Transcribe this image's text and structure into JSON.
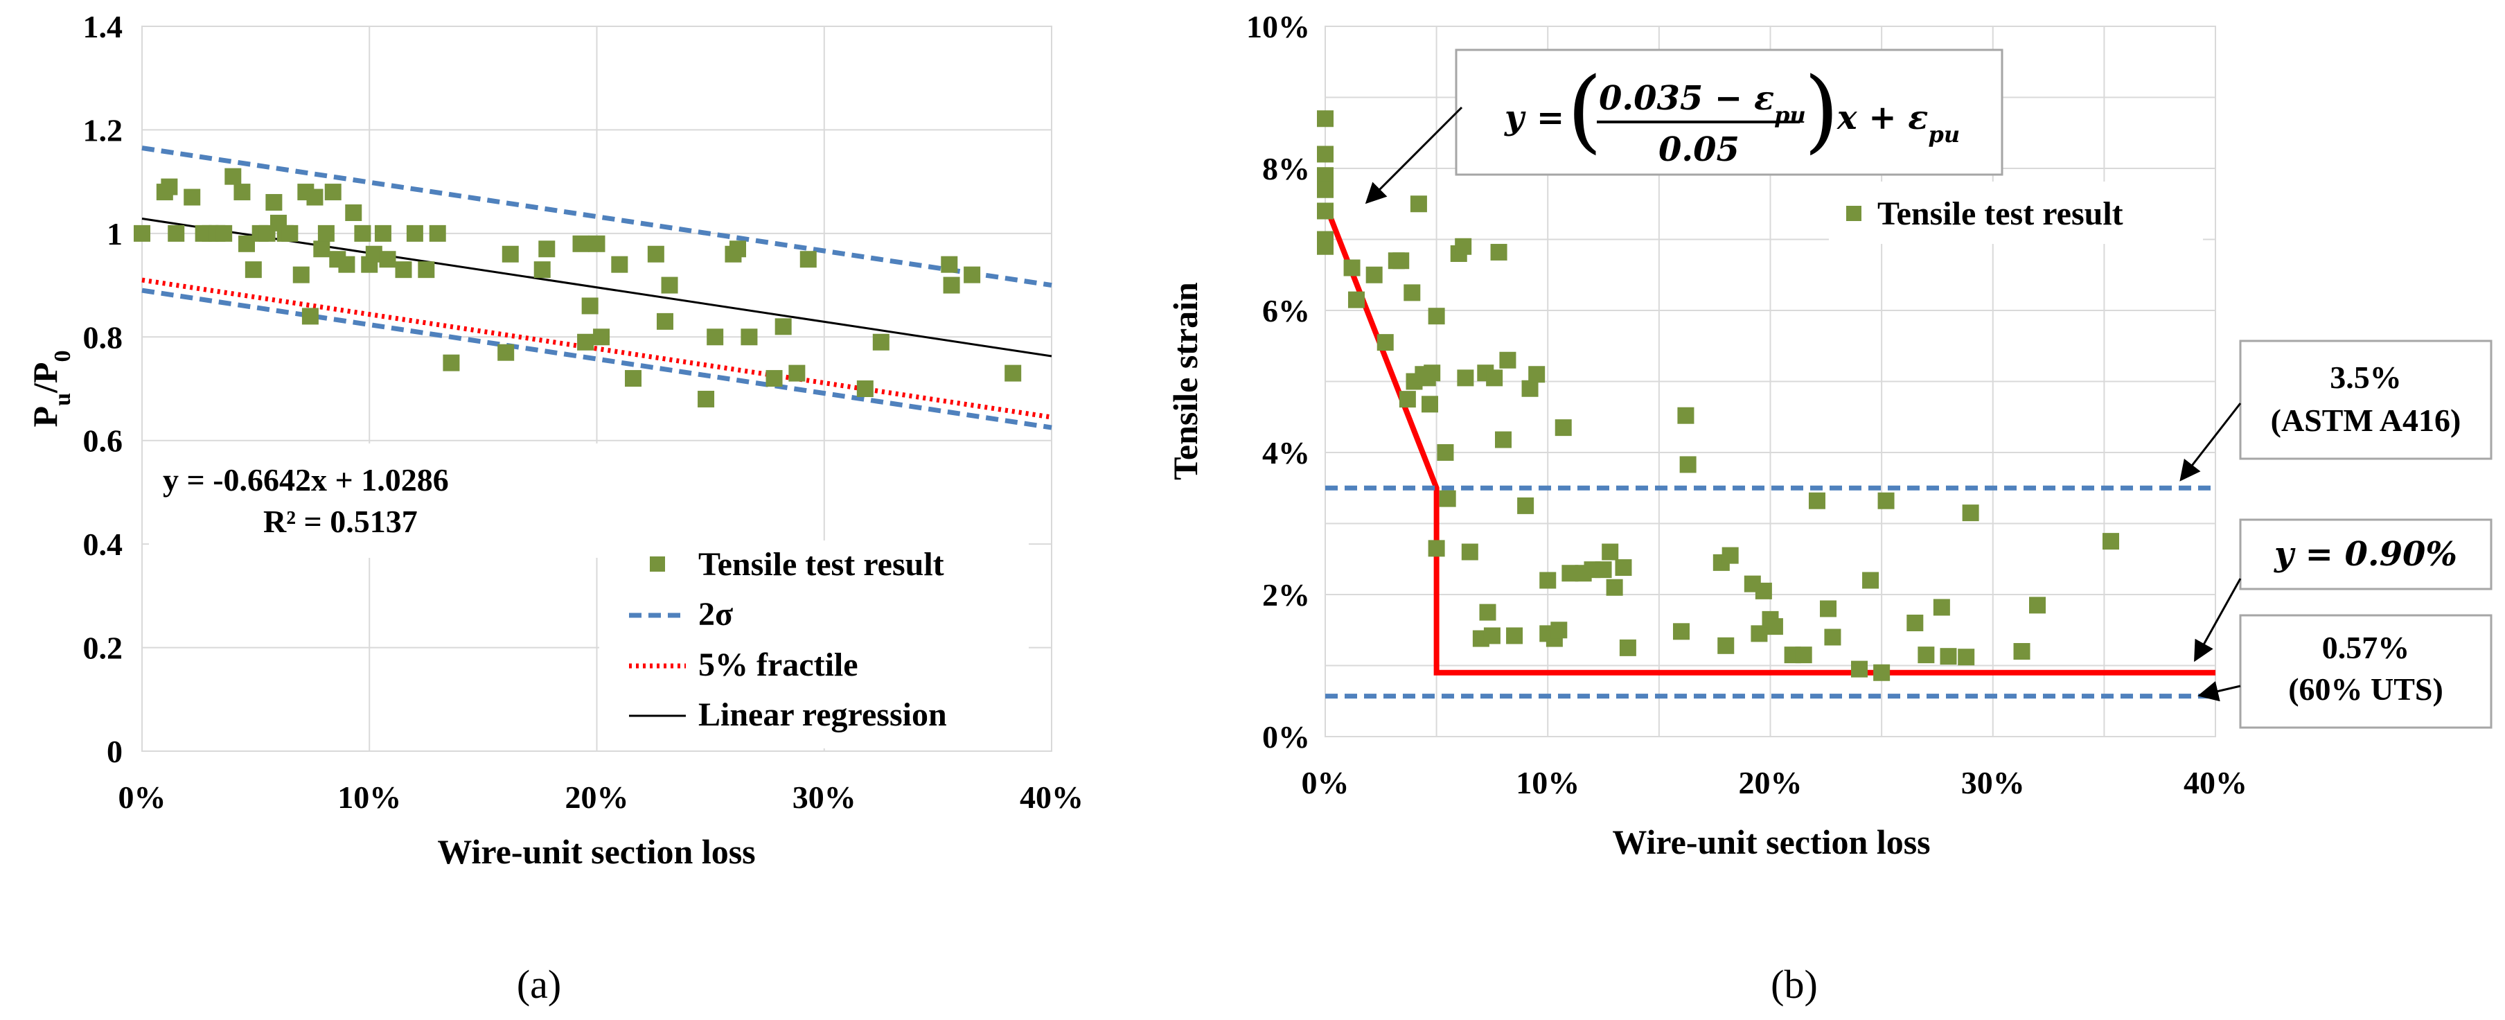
{
  "chart_data": [
    {
      "panel_label": "(a)",
      "type": "scatter",
      "xlabel": "Wire-unit section loss",
      "ylabel_main": "P",
      "ylabel_sub1": "u",
      "ylabel_mid": "/P",
      "ylabel_sub2": "0",
      "xlim": [
        0,
        0.4
      ],
      "ylim": [
        0,
        1.4
      ],
      "x_ticks": [
        "0%",
        "10%",
        "20%",
        "30%",
        "40%"
      ],
      "y_ticks": [
        "0",
        "0.2",
        "0.4",
        "0.6",
        "0.8",
        "1",
        "1.2",
        "1.4"
      ],
      "equation": "y = -0.6642x + 1.0286",
      "r_squared": "R² = 0.5137",
      "legend": [
        "Tensile test result",
        "2σ",
        "5% fractile",
        "Linear regression"
      ],
      "colors": {
        "points": "#77933C",
        "two_sigma": "#4F81BD",
        "fractile": "#FF0000",
        "regression": "#000000"
      },
      "series": [
        {
          "name": "Tensile test result",
          "points": [
            [
              0.0,
              1.0
            ],
            [
              0.01,
              1.08
            ],
            [
              0.012,
              1.09
            ],
            [
              0.015,
              1.0
            ],
            [
              0.022,
              1.07
            ],
            [
              0.027,
              1.0
            ],
            [
              0.03,
              1.0
            ],
            [
              0.033,
              1.0
            ],
            [
              0.036,
              1.0
            ],
            [
              0.04,
              1.11
            ],
            [
              0.044,
              1.08
            ],
            [
              0.046,
              0.98
            ],
            [
              0.049,
              0.93
            ],
            [
              0.052,
              1.0
            ],
            [
              0.055,
              1.0
            ],
            [
              0.058,
              1.06
            ],
            [
              0.06,
              1.02
            ],
            [
              0.063,
              1.0
            ],
            [
              0.065,
              1.0
            ],
            [
              0.07,
              0.92
            ],
            [
              0.072,
              1.08
            ],
            [
              0.074,
              0.84
            ],
            [
              0.076,
              1.07
            ],
            [
              0.079,
              0.97
            ],
            [
              0.081,
              1.0
            ],
            [
              0.084,
              1.08
            ],
            [
              0.086,
              0.95
            ],
            [
              0.09,
              0.94
            ],
            [
              0.093,
              1.04
            ],
            [
              0.097,
              1.0
            ],
            [
              0.1,
              0.94
            ],
            [
              0.102,
              0.96
            ],
            [
              0.106,
              1.0
            ],
            [
              0.108,
              0.95
            ],
            [
              0.115,
              0.93
            ],
            [
              0.12,
              1.0
            ],
            [
              0.125,
              0.93
            ],
            [
              0.13,
              1.0
            ],
            [
              0.136,
              0.75
            ],
            [
              0.16,
              0.77
            ],
            [
              0.162,
              0.96
            ],
            [
              0.176,
              0.93
            ],
            [
              0.178,
              0.97
            ],
            [
              0.193,
              0.98
            ],
            [
              0.195,
              0.79
            ],
            [
              0.197,
              0.86
            ],
            [
              0.2,
              0.98
            ],
            [
              0.202,
              0.8
            ],
            [
              0.21,
              0.94
            ],
            [
              0.216,
              0.72
            ],
            [
              0.226,
              0.96
            ],
            [
              0.23,
              0.83
            ],
            [
              0.232,
              0.9
            ],
            [
              0.248,
              0.68
            ],
            [
              0.252,
              0.8
            ],
            [
              0.26,
              0.96
            ],
            [
              0.262,
              0.97
            ],
            [
              0.267,
              0.8
            ],
            [
              0.278,
              0.72
            ],
            [
              0.282,
              0.82
            ],
            [
              0.288,
              0.73
            ],
            [
              0.293,
              0.95
            ],
            [
              0.318,
              0.7
            ],
            [
              0.325,
              0.79
            ],
            [
              0.355,
              0.94
            ],
            [
              0.356,
              0.9
            ],
            [
              0.365,
              0.92
            ],
            [
              0.383,
              0.73
            ]
          ]
        },
        {
          "name": "2σ upper",
          "line": [
            [
              0,
              1.165
            ],
            [
              0.4,
              0.9
            ]
          ]
        },
        {
          "name": "2σ lower",
          "line": [
            [
              0,
              0.89
            ],
            [
              0.4,
              0.625
            ]
          ]
        },
        {
          "name": "5% fractile",
          "line": [
            [
              0,
              0.91
            ],
            [
              0.4,
              0.645
            ]
          ]
        },
        {
          "name": "Linear regression",
          "line": [
            [
              0,
              1.0286
            ],
            [
              0.4,
              0.7629
            ]
          ]
        }
      ]
    },
    {
      "panel_label": "(b)",
      "type": "scatter",
      "xlabel": "Wire-unit section loss",
      "ylabel": "Tensile strain",
      "xlim": [
        0,
        0.4
      ],
      "ylim": [
        0,
        0.1
      ],
      "x_ticks": [
        "0%",
        "10%",
        "20%",
        "30%",
        "40%"
      ],
      "y_ticks": [
        "0%",
        "2%",
        "4%",
        "6%",
        "8%",
        "10%"
      ],
      "legend": [
        "Tensile test result"
      ],
      "eq_y": "y",
      "eq_equals": "=",
      "eq_num": "0.035 − ε",
      "eq_num_sub": "pu",
      "eq_den": "0.05",
      "eq_tail": "x + ε",
      "eq_tail_sub": "pu",
      "note_astm_value": "3.5%",
      "note_astm_label": "(ASTM A416)",
      "note_090": "y = 0.90%",
      "note_057_value": "0.57%",
      "note_057_label": "(60% UTS)",
      "colors": {
        "points": "#77933C",
        "limits": "#4F81BD",
        "model": "#FF0000"
      },
      "series": [
        {
          "name": "Tensile test result",
          "points": [
            [
              0.0,
              0.087
            ],
            [
              0.0,
              0.082
            ],
            [
              0.0,
              0.079
            ],
            [
              0.0,
              0.077
            ],
            [
              0.0,
              0.074
            ],
            [
              0.0,
              0.07
            ],
            [
              0.0,
              0.069
            ],
            [
              0.012,
              0.066
            ],
            [
              0.014,
              0.0615
            ],
            [
              0.022,
              0.065
            ],
            [
              0.027,
              0.0555
            ],
            [
              0.032,
              0.067
            ],
            [
              0.034,
              0.067
            ],
            [
              0.037,
              0.0475
            ],
            [
              0.039,
              0.0625
            ],
            [
              0.04,
              0.05
            ],
            [
              0.042,
              0.075
            ],
            [
              0.044,
              0.051
            ],
            [
              0.046,
              0.0505
            ],
            [
              0.047,
              0.0468
            ],
            [
              0.048,
              0.0512
            ],
            [
              0.05,
              0.0592
            ],
            [
              0.05,
              0.0265
            ],
            [
              0.054,
              0.04
            ],
            [
              0.055,
              0.0335
            ],
            [
              0.06,
              0.068
            ],
            [
              0.062,
              0.069
            ],
            [
              0.063,
              0.0505
            ],
            [
              0.065,
              0.026
            ],
            [
              0.07,
              0.0138
            ],
            [
              0.072,
              0.0512
            ],
            [
              0.073,
              0.0175
            ],
            [
              0.075,
              0.0142
            ],
            [
              0.076,
              0.0505
            ],
            [
              0.078,
              0.0682
            ],
            [
              0.08,
              0.0418
            ],
            [
              0.082,
              0.053
            ],
            [
              0.085,
              0.0142
            ],
            [
              0.09,
              0.0325
            ],
            [
              0.092,
              0.049
            ],
            [
              0.095,
              0.051
            ],
            [
              0.1,
              0.0145
            ],
            [
              0.1,
              0.022
            ],
            [
              0.103,
              0.0138
            ],
            [
              0.105,
              0.015
            ],
            [
              0.107,
              0.0435
            ],
            [
              0.11,
              0.023
            ],
            [
              0.116,
              0.023
            ],
            [
              0.12,
              0.0235
            ],
            [
              0.125,
              0.0235
            ],
            [
              0.128,
              0.026
            ],
            [
              0.13,
              0.021
            ],
            [
              0.134,
              0.0238
            ],
            [
              0.136,
              0.0125
            ],
            [
              0.16,
              0.0148
            ],
            [
              0.162,
              0.0452
            ],
            [
              0.163,
              0.0383
            ],
            [
              0.178,
              0.0245
            ],
            [
              0.18,
              0.0128
            ],
            [
              0.182,
              0.0255
            ],
            [
              0.192,
              0.0215
            ],
            [
              0.195,
              0.0145
            ],
            [
              0.197,
              0.0205
            ],
            [
              0.2,
              0.0165
            ],
            [
              0.202,
              0.0155
            ],
            [
              0.21,
              0.0115
            ],
            [
              0.215,
              0.0115
            ],
            [
              0.221,
              0.0332
            ],
            [
              0.226,
              0.018
            ],
            [
              0.228,
              0.014
            ],
            [
              0.24,
              0.0095
            ],
            [
              0.245,
              0.022
            ],
            [
              0.25,
              0.009
            ],
            [
              0.252,
              0.0332
            ],
            [
              0.265,
              0.016
            ],
            [
              0.27,
              0.0115
            ],
            [
              0.277,
              0.0182
            ],
            [
              0.28,
              0.0113
            ],
            [
              0.288,
              0.0112
            ],
            [
              0.29,
              0.0315
            ],
            [
              0.313,
              0.012
            ],
            [
              0.32,
              0.0185
            ],
            [
              0.353,
              0.0275
            ]
          ]
        },
        {
          "name": "Model (y = ((0.035 − εpu)/0.05)x + εpu)",
          "line": [
            [
              0,
              0.075
            ],
            [
              0.05,
              0.035
            ],
            [
              0.05,
              0.009
            ],
            [
              0.4,
              0.009
            ]
          ]
        },
        {
          "name": "3.5% (ASTM A416)",
          "line": [
            [
              0,
              0.035
            ],
            [
              0.4,
              0.035
            ]
          ]
        },
        {
          "name": "0.57% (60% UTS)",
          "line": [
            [
              0,
              0.0057
            ],
            [
              0.4,
              0.0057
            ]
          ]
        }
      ]
    }
  ]
}
